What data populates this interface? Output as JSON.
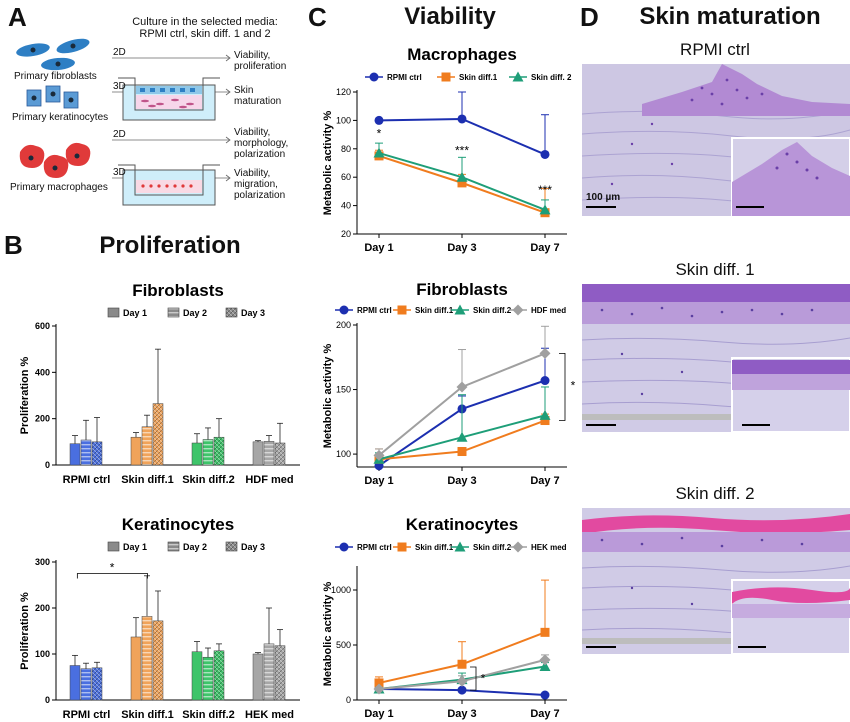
{
  "panels": {
    "A": {
      "letter": "A"
    },
    "B": {
      "letter": "B",
      "title": "Proliferation"
    },
    "C": {
      "letter": "C",
      "title": "Viability"
    },
    "D": {
      "letter": "D",
      "title": "Skin maturation"
    }
  },
  "schematic": {
    "header_line1": "Culture in the selected media:",
    "header_line2": "RPMI ctrl, skin diff. 1 and 2",
    "cells": {
      "fibroblasts": "Primary fibroblasts",
      "keratinocytes": "Primary keratinocytes",
      "macrophages": "Primary macrophages"
    },
    "dims": {
      "d2a": "2D",
      "d3a": "3D",
      "d2b": "2D",
      "d3b": "3D"
    },
    "outcomes": {
      "o1a": "Viability,",
      "o1b": "proliferation",
      "o2a": "Skin",
      "o2b": "maturation",
      "o3a": "Viability,",
      "o3b": "morphology,",
      "o3c": "polarization",
      "o4a": "Viability,",
      "o4b": "migration,",
      "o4c": "polarization"
    },
    "colors": {
      "fibroblast": "#2e7fc4",
      "keratinocyte": "#5b9bd5",
      "macrophage": "#e03a3a",
      "medium": "#cfeefa",
      "nucleus": "#1a2a3a"
    }
  },
  "chart_data": [
    {
      "id": "b-fibro",
      "type": "bar",
      "title": "Fibroblasts",
      "ylabel": "Proliferation %",
      "ylim": [
        0,
        600
      ],
      "yticks": [
        "0",
        "200",
        "400",
        "600"
      ],
      "categories": [
        "RPMI ctrl",
        "Skin diff.1",
        "Skin diff.2",
        "HDF med"
      ],
      "series": [
        {
          "name": "Day 1",
          "values": [
            92,
            120,
            95,
            100
          ],
          "errors": [
            35,
            20,
            40,
            5
          ]
        },
        {
          "name": "Day 2",
          "values": [
            108,
            165,
            110,
            102
          ],
          "errors": [
            85,
            50,
            50,
            25
          ]
        },
        {
          "name": "Day 3",
          "values": [
            100,
            265,
            120,
            95
          ],
          "errors": [
            105,
            235,
            80,
            85
          ]
        }
      ],
      "group_colors": [
        "#4a6fe0",
        "#f0a35a",
        "#3ec46a",
        "#a6a6a6"
      ]
    },
    {
      "id": "b-kera",
      "type": "bar",
      "title": "Keratinocytes",
      "ylabel": "Proliferation %",
      "ylim": [
        0,
        300
      ],
      "yticks": [
        "0",
        "100",
        "200",
        "300"
      ],
      "categories": [
        "RPMI ctrl",
        "Skin diff.1",
        "Skin diff.2",
        "HEK med"
      ],
      "series": [
        {
          "name": "Day 1",
          "values": [
            75,
            137,
            105,
            100
          ],
          "errors": [
            22,
            42,
            22,
            3
          ]
        },
        {
          "name": "Day 2",
          "values": [
            68,
            182,
            93,
            122
          ],
          "errors": [
            12,
            88,
            20,
            78
          ]
        },
        {
          "name": "Day 3",
          "values": [
            70,
            172,
            107,
            118
          ],
          "errors": [
            12,
            65,
            15,
            35
          ]
        }
      ],
      "group_colors": [
        "#4a6fe0",
        "#f0a35a",
        "#3ec46a",
        "#a6a6a6"
      ],
      "annotation": "*"
    },
    {
      "id": "c-macro",
      "type": "line",
      "title": "Macrophages",
      "ylabel": "Metabolic activity %",
      "ylim": [
        20,
        120
      ],
      "yticks": [
        "20",
        "40",
        "60",
        "80",
        "100",
        "120"
      ],
      "categories": [
        "Day 1",
        "Day 3",
        "Day 7"
      ],
      "series": [
        {
          "name": "RPMI ctrl",
          "values": [
            100,
            101,
            76
          ],
          "errors": [
            0,
            19,
            28
          ],
          "color": "#1c2fb0",
          "marker": "circle"
        },
        {
          "name": "Skin diff.1",
          "values": [
            75,
            56,
            35
          ],
          "errors": [
            4,
            6,
            17
          ],
          "color": "#f07c1e",
          "marker": "square"
        },
        {
          "name": "Skin diff. 2",
          "values": [
            77,
            60,
            37
          ],
          "errors": [
            7,
            14,
            7
          ],
          "color": "#1e9e78",
          "marker": "triangle"
        }
      ],
      "sig": {
        "s1": "*",
        "s2": "***",
        "s3": "***"
      }
    },
    {
      "id": "c-fibro",
      "type": "line",
      "title": "Fibroblasts",
      "ylabel": "Metabolic activity %",
      "ylim": [
        90,
        200
      ],
      "yticks": [
        "100",
        "150",
        "200"
      ],
      "categories": [
        "Day 1",
        "Day 3",
        "Day 7"
      ],
      "series": [
        {
          "name": "RPMI ctrl",
          "values": [
            91,
            135,
            157
          ],
          "errors": [
            3,
            10,
            25
          ],
          "color": "#1c2fb0",
          "marker": "circle"
        },
        {
          "name": "Skin diff.1",
          "values": [
            96,
            102,
            126
          ],
          "errors": [
            8,
            3,
            5
          ],
          "color": "#f07c1e",
          "marker": "square"
        },
        {
          "name": "Skin diff.2",
          "values": [
            96,
            113,
            130
          ],
          "errors": [
            5,
            33,
            22
          ],
          "color": "#1e9e78",
          "marker": "triangle"
        },
        {
          "name": "HDF med",
          "values": [
            99,
            152,
            178
          ],
          "errors": [
            5,
            29,
            21
          ],
          "color": "#a0a0a0",
          "marker": "diamond"
        }
      ],
      "annotation": "*"
    },
    {
      "id": "c-kera",
      "type": "line",
      "title": "Keratinocytes",
      "ylabel": "Metabolic activity %",
      "ylim": [
        0,
        1200
      ],
      "yticks": [
        "0",
        "500",
        "1000"
      ],
      "categories": [
        "Day 1",
        "Day 3",
        "Day 7"
      ],
      "series": [
        {
          "name": "RPMI ctrl",
          "values": [
            100,
            90,
            45
          ],
          "errors": [
            5,
            6,
            5
          ],
          "color": "#1c2fb0",
          "marker": "circle"
        },
        {
          "name": "Skin diff.1",
          "values": [
            155,
            325,
            615
          ],
          "errors": [
            55,
            205,
            475
          ],
          "color": "#f07c1e",
          "marker": "square"
        },
        {
          "name": "Skin diff.2",
          "values": [
            100,
            185,
            305
          ],
          "errors": [
            15,
            60,
            35
          ],
          "color": "#1e9e78",
          "marker": "triangle"
        },
        {
          "name": "HEK med",
          "values": [
            100,
            170,
            365
          ],
          "errors": [
            10,
            50,
            45
          ],
          "color": "#a0a0a0",
          "marker": "diamond"
        }
      ],
      "annotation": "*"
    }
  ],
  "micrographs": {
    "m1": {
      "label": "RPMI ctrl",
      "scale_bar": "100 µm"
    },
    "m2": {
      "label": "Skin diff. 1"
    },
    "m3": {
      "label": "Skin diff. 2"
    },
    "colors": {
      "dermis": "#c9c4e2",
      "dermis_line": "#a79ed0",
      "epidermis_pink": "#e24aa0",
      "epidermis_violet": "#9a6ac8",
      "nuclei": "#5a3fa0"
    }
  }
}
